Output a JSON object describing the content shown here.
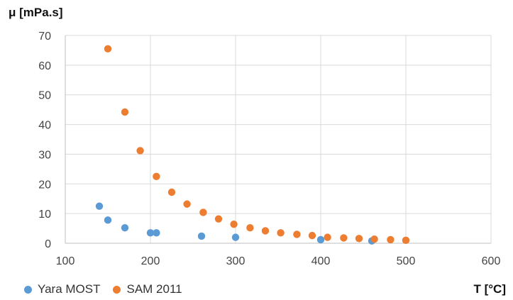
{
  "chart_data": {
    "type": "scatter",
    "ylabel": "μ [mPa.s]",
    "xlabel": "T [°C]",
    "xlim": [
      100,
      600
    ],
    "ylim": [
      0,
      70
    ],
    "xticks": [
      100,
      200,
      300,
      400,
      500,
      600
    ],
    "yticks": [
      0,
      10,
      20,
      30,
      40,
      50,
      60,
      70
    ],
    "grid": "vertical and horizontal",
    "legend_position": "bottom-left",
    "series": [
      {
        "name": "Yara MOST",
        "color": "#5b9bd5",
        "x": [
          140,
          150,
          170,
          200,
          207,
          260,
          300,
          400,
          460
        ],
        "y": [
          12.5,
          7.8,
          5.2,
          3.5,
          3.5,
          2.4,
          2.0,
          1.2,
          0.8
        ]
      },
      {
        "name": "SAM 2011",
        "color": "#ed7d31",
        "x": [
          150,
          170,
          188,
          207,
          225,
          243,
          262,
          280,
          298,
          317,
          335,
          353,
          372,
          390,
          408,
          427,
          445,
          463,
          482,
          500
        ],
        "y": [
          65.5,
          44.2,
          31.2,
          22.5,
          17.2,
          13.2,
          10.4,
          8.2,
          6.4,
          5.2,
          4.2,
          3.5,
          3.0,
          2.6,
          2.0,
          1.8,
          1.6,
          1.4,
          1.2,
          1.0
        ]
      }
    ]
  }
}
